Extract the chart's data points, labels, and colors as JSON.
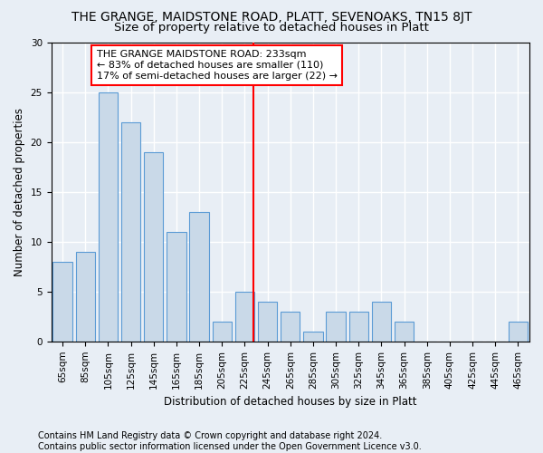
{
  "title": "THE GRANGE, MAIDSTONE ROAD, PLATT, SEVENOAKS, TN15 8JT",
  "subtitle": "Size of property relative to detached houses in Platt",
  "xlabel": "Distribution of detached houses by size in Platt",
  "ylabel": "Number of detached properties",
  "categories": [
    "65sqm",
    "85sqm",
    "105sqm",
    "125sqm",
    "145sqm",
    "165sqm",
    "185sqm",
    "205sqm",
    "225sqm",
    "245sqm",
    "265sqm",
    "285sqm",
    "305sqm",
    "325sqm",
    "345sqm",
    "365sqm",
    "385sqm",
    "405sqm",
    "425sqm",
    "445sqm",
    "465sqm"
  ],
  "values": [
    8,
    9,
    25,
    22,
    19,
    11,
    13,
    2,
    5,
    4,
    3,
    1,
    3,
    3,
    4,
    2,
    0,
    0,
    0,
    0,
    2
  ],
  "bar_color": "#c9d9e8",
  "bar_edge_color": "#5b9bd5",
  "vline_color": "red",
  "vline_x_index": 8.4,
  "annotation_text": "THE GRANGE MAIDSTONE ROAD: 233sqm\n← 83% of detached houses are smaller (110)\n17% of semi-detached houses are larger (22) →",
  "annotation_box_color": "white",
  "annotation_box_edge": "red",
  "ylim": [
    0,
    30
  ],
  "yticks": [
    0,
    5,
    10,
    15,
    20,
    25,
    30
  ],
  "footer_line1": "Contains HM Land Registry data © Crown copyright and database right 2024.",
  "footer_line2": "Contains public sector information licensed under the Open Government Licence v3.0.",
  "background_color": "#e8eef5",
  "plot_background": "#e8eef5",
  "grid_color": "white",
  "title_fontsize": 10,
  "axis_label_fontsize": 8.5,
  "tick_fontsize": 7.5,
  "annotation_fontsize": 8,
  "footer_fontsize": 7
}
